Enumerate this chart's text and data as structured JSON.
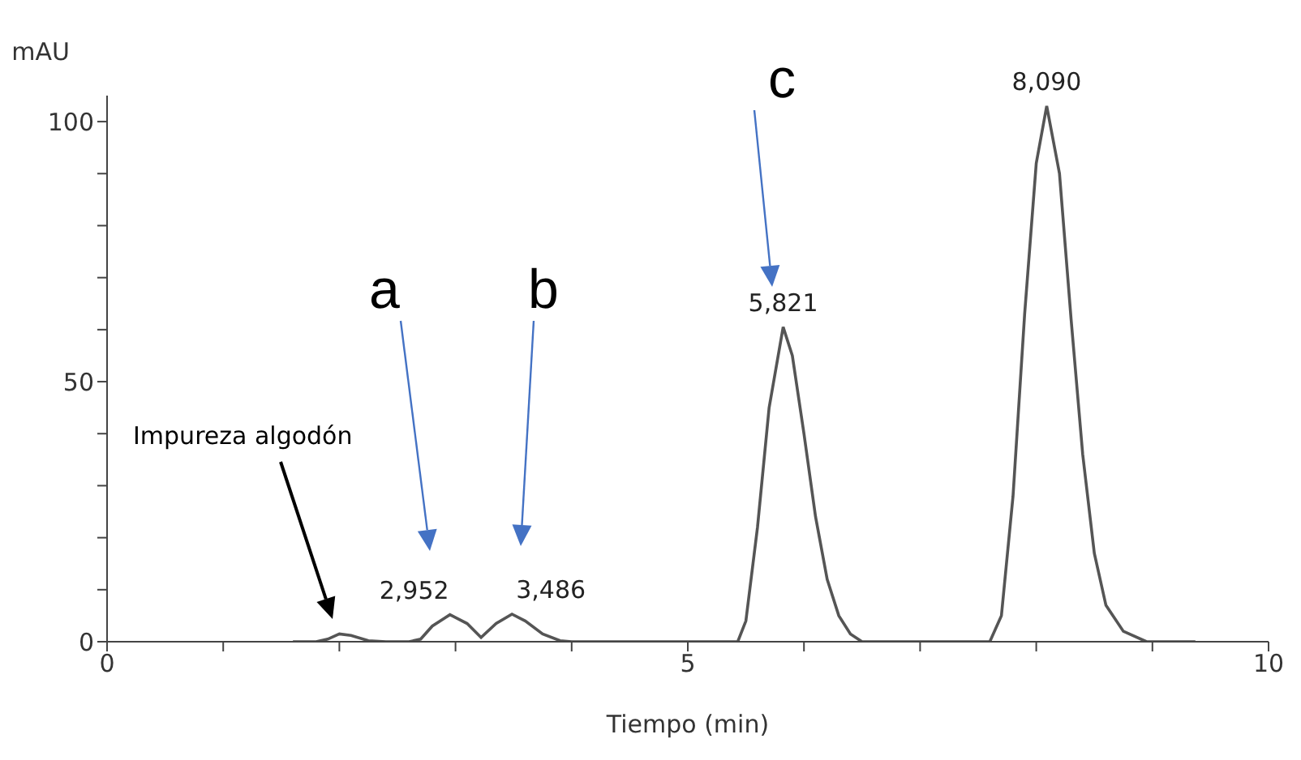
{
  "chart_data": {
    "type": "line",
    "xlabel": "Tiempo (min)",
    "ylabel": "mAU",
    "xlim": [
      0,
      10
    ],
    "ylim": [
      0,
      105
    ],
    "xticks": [
      0,
      {
        "value": 1,
        "label": null
      },
      {
        "value": 2,
        "label": null
      },
      {
        "value": 3,
        "label": null
      },
      {
        "value": 4,
        "label": null
      },
      5,
      {
        "value": 6,
        "label": null
      },
      {
        "value": 7,
        "label": null
      },
      {
        "value": 8,
        "label": null
      },
      {
        "value": 9,
        "label": null
      },
      10
    ],
    "yticks": [
      0,
      {
        "value": 10,
        "label": null
      },
      {
        "value": 20,
        "label": null
      },
      {
        "value": 30,
        "label": null
      },
      {
        "value": 40,
        "label": null
      },
      50,
      {
        "value": 60,
        "label": null
      },
      {
        "value": 70,
        "label": null
      },
      {
        "value": 80,
        "label": null
      },
      {
        "value": 90,
        "label": null
      },
      100
    ],
    "series": [
      {
        "color": "#555555",
        "x": [
          1.6,
          1.8,
          1.9,
          2.0,
          2.1,
          2.25,
          2.4,
          2.6,
          2.7,
          2.8,
          2.952,
          3.1,
          3.22,
          3.35,
          3.486,
          3.6,
          3.75,
          3.9,
          4.0,
          5.43,
          5.5,
          5.6,
          5.7,
          5.821,
          5.9,
          6.0,
          6.1,
          6.2,
          6.3,
          6.4,
          6.5,
          7.6,
          7.7,
          7.8,
          7.9,
          8.0,
          8.09,
          8.2,
          8.3,
          8.4,
          8.5,
          8.6,
          8.75,
          8.95,
          9.37
        ],
        "values": [
          0,
          0,
          0.5,
          1.5,
          1.2,
          0.2,
          0,
          0,
          0.5,
          3,
          5.2,
          3.5,
          0.8,
          3.5,
          5.3,
          4,
          1.5,
          0.2,
          0,
          0,
          4,
          22,
          45,
          60.5,
          55,
          40,
          24,
          12,
          5,
          1.5,
          0,
          0,
          5,
          28,
          63,
          92,
          103,
          90,
          62,
          36,
          17,
          7,
          2,
          0,
          0
        ]
      }
    ],
    "annotations": [
      {
        "text": "2,952",
        "x": 2.952,
        "y": 5.2
      },
      {
        "text": "3,486",
        "x": 3.486,
        "y": 5.3
      },
      {
        "text": "5,821",
        "x": 5.821,
        "y": 60.5
      },
      {
        "text": "8,090",
        "x": 8.09,
        "y": 103
      },
      "Impureza algodón",
      "a",
      "b",
      "c"
    ]
  }
}
